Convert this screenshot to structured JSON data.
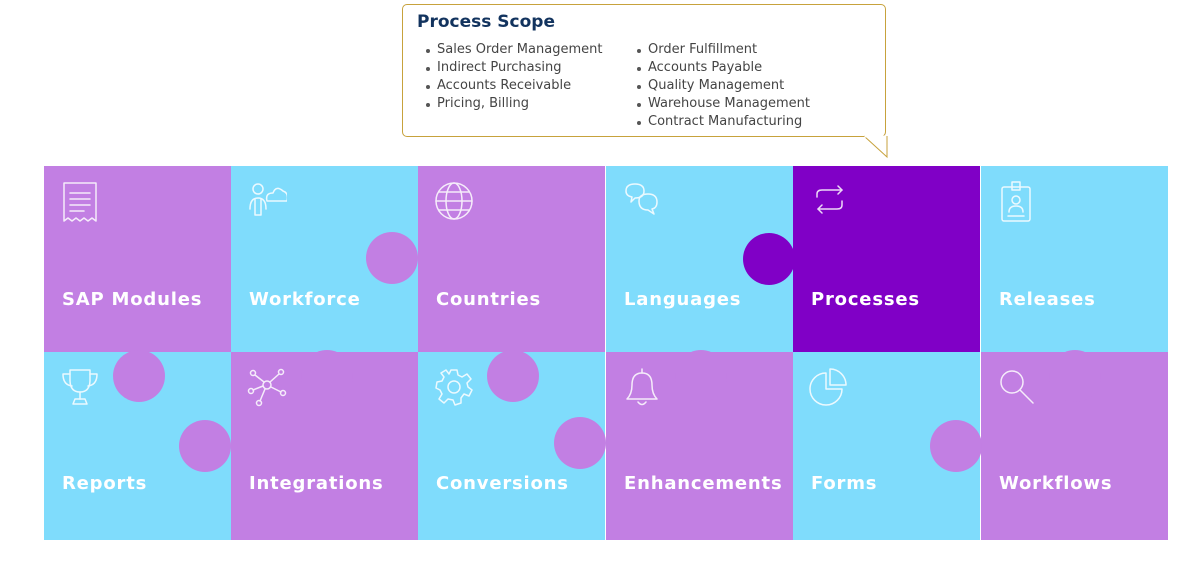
{
  "colors": {
    "purple": "#c27fe3",
    "blue": "#7fdcfc",
    "highlight": "#8000c6",
    "title": "#12335e",
    "border": "#c7a23c"
  },
  "process_scope": {
    "title": "Process Scope",
    "column_1": [
      "Sales Order Management",
      "Indirect Purchasing",
      "Accounts Receivable",
      "Pricing, Billing"
    ],
    "column_2": [
      "Order Fulfillment",
      "Accounts Payable",
      "Quality Management",
      "Warehouse Management",
      "Contract Manufacturing"
    ]
  },
  "pieces": [
    {
      "label": "SAP Modules",
      "icon": "receipt-icon",
      "color": "purple"
    },
    {
      "label": "Workforce",
      "icon": "person-cloud-icon",
      "color": "blue"
    },
    {
      "label": "Countries",
      "icon": "globe-icon",
      "color": "purple"
    },
    {
      "label": "Languages",
      "icon": "chat-bubbles-icon",
      "color": "blue"
    },
    {
      "label": "Processes",
      "icon": "cycle-arrows-icon",
      "color": "highlight"
    },
    {
      "label": "Releases",
      "icon": "id-badge-icon",
      "color": "blue"
    },
    {
      "label": "Reports",
      "icon": "trophy-icon",
      "color": "blue"
    },
    {
      "label": "Integrations",
      "icon": "network-icon",
      "color": "purple"
    },
    {
      "label": "Conversions",
      "icon": "gear-icon",
      "color": "blue"
    },
    {
      "label": "Enhancements",
      "icon": "bell-icon",
      "color": "purple"
    },
    {
      "label": "Forms",
      "icon": "pie-chart-icon",
      "color": "blue"
    },
    {
      "label": "Workflows",
      "icon": "magnifier-icon",
      "color": "purple"
    }
  ]
}
